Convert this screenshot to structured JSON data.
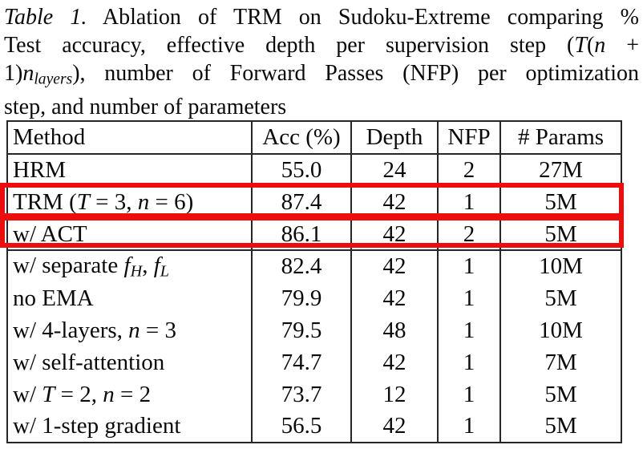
{
  "caption": {
    "lines": [
      {
        "justify": true,
        "segments": [
          {
            "t": "Table 1.",
            "s": "italic"
          },
          {
            "t": " Ablation of TRM on Sudoku-Extreme comparing %",
            "s": "roman"
          }
        ]
      },
      {
        "justify": true,
        "segments": [
          {
            "t": "Test accuracy, effective depth per supervision step (",
            "s": "roman"
          },
          {
            "t": "T",
            "s": "italic"
          },
          {
            "t": "(",
            "s": "roman"
          },
          {
            "t": "n",
            "s": "italic"
          },
          {
            "t": " +",
            "s": "roman"
          }
        ]
      },
      {
        "justify": true,
        "segments": [
          {
            "t": "1)",
            "s": "roman"
          },
          {
            "t": "n",
            "s": "italic"
          },
          {
            "t": "layers",
            "s": "italic-sub"
          },
          {
            "t": "), number of Forward Passes (NFP) per optimization",
            "s": "roman"
          }
        ]
      },
      {
        "justify": false,
        "segments": [
          {
            "t": "step, and number of parameters",
            "s": "roman"
          }
        ]
      }
    ]
  },
  "table": {
    "headers": [
      "Method",
      "Acc (%)",
      "Depth",
      "NFP",
      "# Params"
    ],
    "rows": [
      {
        "rule": true,
        "highlight": false,
        "method": [
          {
            "t": "HRM",
            "s": "roman"
          }
        ],
        "acc": "55.0",
        "depth": "24",
        "nfp": "2",
        "params": "27M"
      },
      {
        "rule": true,
        "highlight": true,
        "method": [
          {
            "t": "TRM (",
            "s": "roman"
          },
          {
            "t": "T",
            "s": "italic"
          },
          {
            "t": " = 3, ",
            "s": "roman"
          },
          {
            "t": "n",
            "s": "italic"
          },
          {
            "t": " = 6)",
            "s": "roman"
          }
        ],
        "acc": "87.4",
        "depth": "42",
        "nfp": "1",
        "params": "5M"
      },
      {
        "rule": true,
        "highlight": true,
        "method": [
          {
            "t": "w/ ACT",
            "s": "roman"
          }
        ],
        "acc": "86.1",
        "depth": "42",
        "nfp": "2",
        "params": "5M"
      },
      {
        "rule": false,
        "highlight": false,
        "method": [
          {
            "t": "w/ separate ",
            "s": "roman"
          },
          {
            "t": "f",
            "s": "italic"
          },
          {
            "t": "H",
            "s": "italic-sub"
          },
          {
            "t": ", ",
            "s": "roman"
          },
          {
            "t": "f",
            "s": "italic"
          },
          {
            "t": "L",
            "s": "italic-sub"
          }
        ],
        "acc": "82.4",
        "depth": "42",
        "nfp": "1",
        "params": "10M"
      },
      {
        "rule": false,
        "highlight": false,
        "method": [
          {
            "t": "no EMA",
            "s": "roman"
          }
        ],
        "acc": "79.9",
        "depth": "42",
        "nfp": "1",
        "params": "5M"
      },
      {
        "rule": false,
        "highlight": false,
        "method": [
          {
            "t": "w/ 4-layers, ",
            "s": "roman"
          },
          {
            "t": "n",
            "s": "italic"
          },
          {
            "t": " = 3",
            "s": "roman"
          }
        ],
        "acc": "79.5",
        "depth": "48",
        "nfp": "1",
        "params": "10M"
      },
      {
        "rule": false,
        "highlight": false,
        "method": [
          {
            "t": "w/ self-attention",
            "s": "roman"
          }
        ],
        "acc": "74.7",
        "depth": "42",
        "nfp": "1",
        "params": "7M"
      },
      {
        "rule": false,
        "highlight": false,
        "method": [
          {
            "t": "w/ ",
            "s": "roman"
          },
          {
            "t": "T",
            "s": "italic"
          },
          {
            "t": " = 2, ",
            "s": "roman"
          },
          {
            "t": "n",
            "s": "italic"
          },
          {
            "t": " = 2",
            "s": "roman"
          }
        ],
        "acc": "73.7",
        "depth": "12",
        "nfp": "1",
        "params": "5M"
      },
      {
        "rule": false,
        "highlight": false,
        "method": [
          {
            "t": "w/ 1-step gradient",
            "s": "roman"
          }
        ],
        "acc": "56.5",
        "depth": "42",
        "nfp": "1",
        "params": "5M"
      }
    ]
  },
  "colors": {
    "highlight_box": "#ee0d0d",
    "table_border": "#262626",
    "text": "#0a0a0a",
    "background": "#ffffff"
  }
}
